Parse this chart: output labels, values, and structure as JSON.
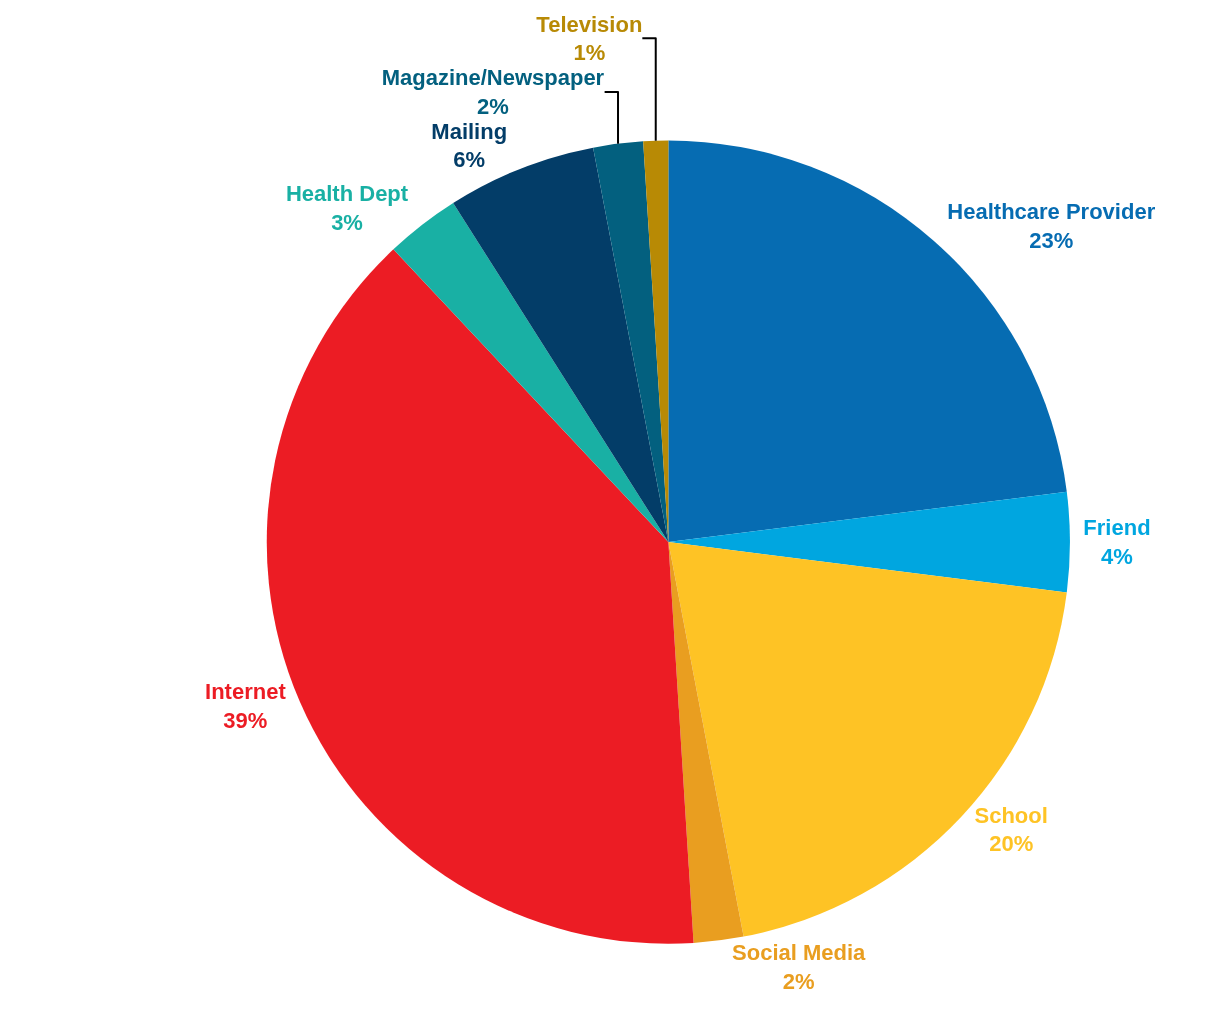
{
  "chart_data": {
    "type": "pie",
    "categories": [
      "Healthcare Provider",
      "Friend",
      "School",
      "Social Media",
      "Internet",
      "Health Dept",
      "Mailing",
      "Magazine/Newspaper",
      "Television"
    ],
    "values": [
      23,
      4,
      20,
      2,
      39,
      3,
      6,
      2,
      1
    ],
    "value_labels": [
      "23%",
      "4%",
      "20%",
      "2%",
      "39%",
      "3%",
      "6%",
      "2%",
      "1%"
    ],
    "colors": [
      "#066cb2",
      "#00a6e0",
      "#fec325",
      "#e99e20",
      "#ec1c24",
      "#19b0a4",
      "#033d68",
      "#03607f",
      "#b88a05"
    ],
    "legend": false
  }
}
